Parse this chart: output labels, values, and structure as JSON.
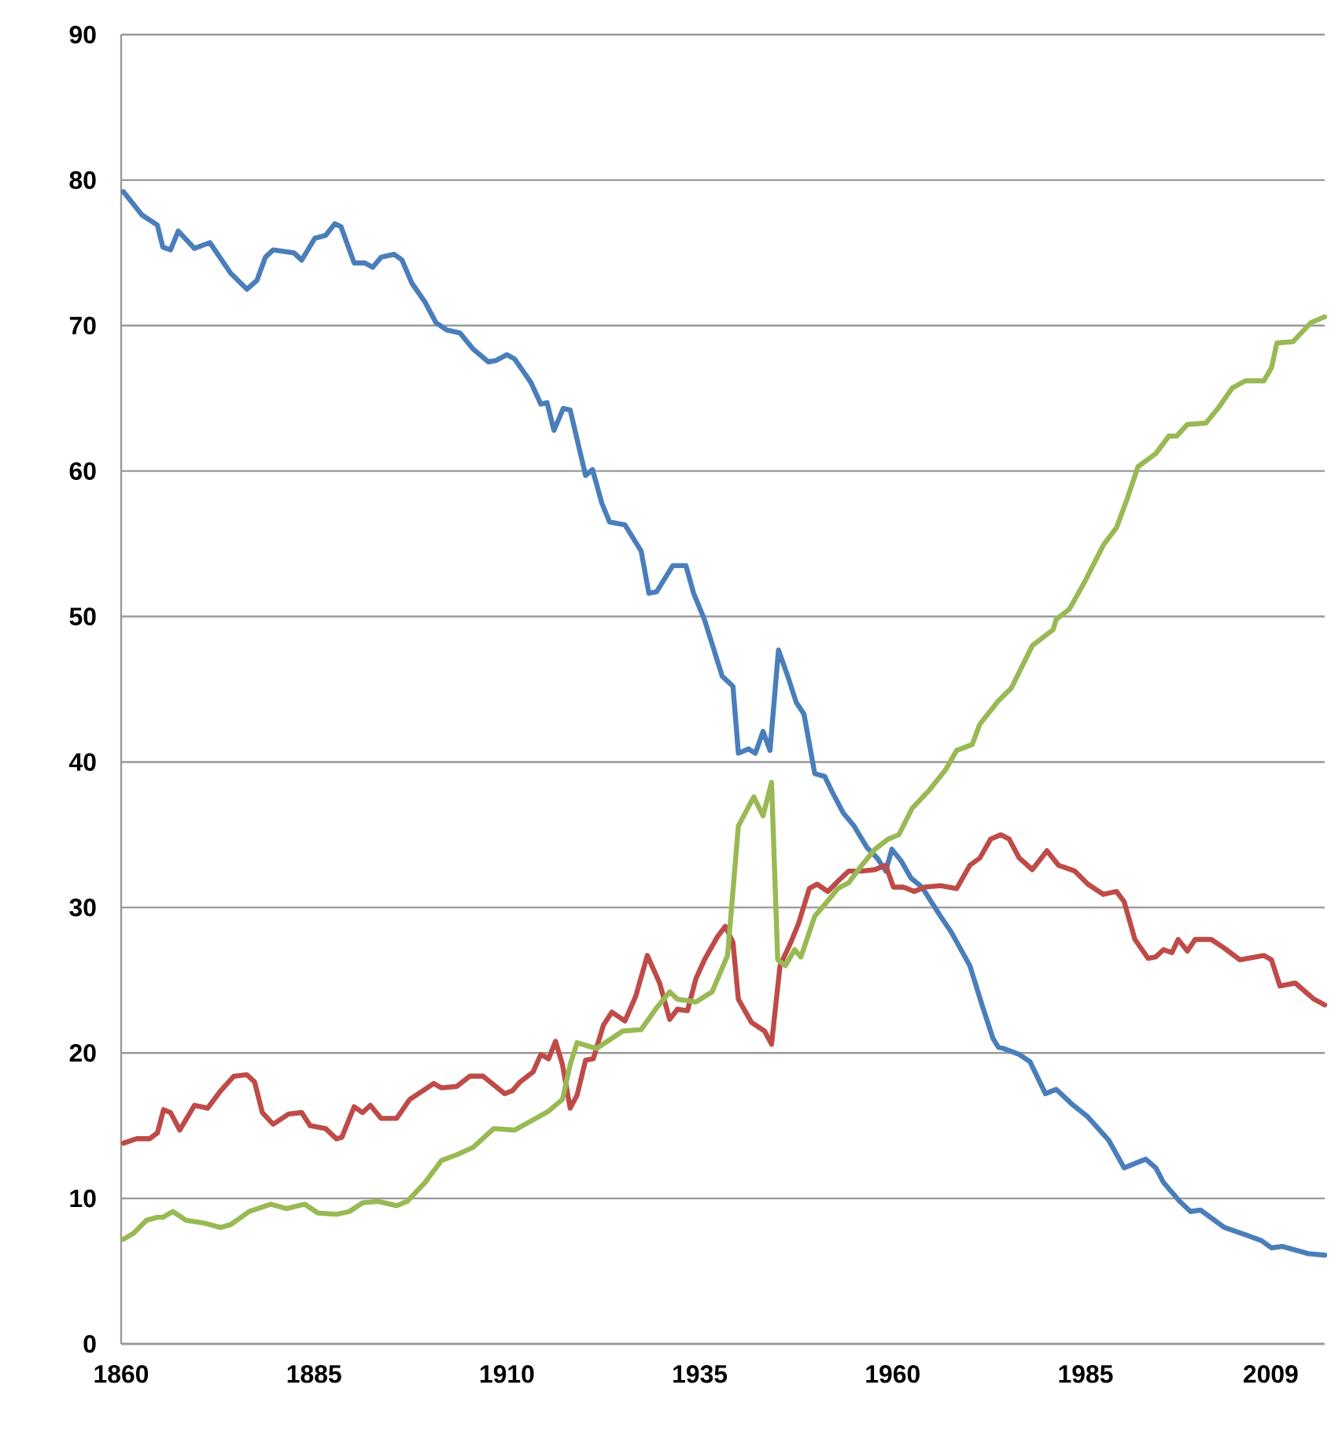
{
  "chart_data": {
    "type": "line",
    "xlim": [
      1860,
      2016
    ],
    "xticks": [
      1860,
      1885,
      1910,
      1935,
      1960,
      1985,
      2009
    ],
    "ylim": [
      0,
      90
    ],
    "yticks": [
      0,
      10,
      20,
      30,
      40,
      50,
      60,
      70,
      80,
      90
    ],
    "grid": "y",
    "line_style": "solid",
    "marker": "none",
    "series": [
      {
        "color": "#4a7ebb",
        "x": [
          1860.3,
          1862.7,
          1864.7,
          1865.4,
          1866.4,
          1867.4,
          1869.5,
          1871.5,
          1874.2,
          1876.3,
          1877.6,
          1878.7,
          1879.7,
          1882.4,
          1883.4,
          1885.1,
          1886.5,
          1887.7,
          1888.5,
          1890.2,
          1891.6,
          1892.6,
          1893.7,
          1895.4,
          1896.4,
          1897.7,
          1899.4,
          1900.8,
          1902.2,
          1903.9,
          1905.6,
          1907.6,
          1908.6,
          1910.0,
          1911.0,
          1913.1,
          1914.4,
          1915.2,
          1916.1,
          1917.3,
          1918.2,
          1920.2,
          1921.1,
          1922.3,
          1923.3,
          1925.3,
          1927.4,
          1928.4,
          1929.4,
          1931.5,
          1933.2,
          1934.2,
          1935.6,
          1937.9,
          1939.3,
          1940.0,
          1941.3,
          1942.2,
          1943.2,
          1944.1,
          1945.2,
          1946.4,
          1947.5,
          1948.5,
          1949.9,
          1951.2,
          1952.2,
          1953.6,
          1955.0,
          1956.7,
          1958.0,
          1959.1,
          1959.9,
          1961.1,
          1962.4,
          1963.8,
          1966.2,
          1967.6,
          1970.0,
          1971.7,
          1973.0,
          1973.7,
          1974.4,
          1976.4,
          1977.8,
          1979.8,
          1981.2,
          1983.2,
          1985.3,
          1988.0,
          1990.0,
          1992.8,
          1994.1,
          1995.1,
          1997.2,
          1998.6,
          1999.9,
          2003.0,
          2005.7,
          2007.8,
          2009.1,
          2010.5,
          2013.9,
          2016.0
        ],
        "values": [
          79.2,
          77.6,
          76.9,
          75.4,
          75.2,
          76.5,
          75.3,
          75.7,
          73.6,
          72.5,
          73.1,
          74.7,
          75.2,
          75.0,
          74.5,
          76.0,
          76.2,
          77.0,
          76.8,
          74.3,
          74.3,
          74.0,
          74.7,
          74.9,
          74.5,
          72.9,
          71.6,
          70.2,
          69.7,
          69.5,
          68.4,
          67.5,
          67.6,
          68.0,
          67.7,
          66.1,
          64.6,
          64.7,
          62.8,
          64.3,
          64.2,
          59.7,
          60.1,
          57.8,
          56.5,
          56.3,
          54.5,
          51.6,
          51.7,
          53.5,
          53.5,
          51.6,
          49.8,
          45.9,
          45.2,
          40.6,
          40.9,
          40.6,
          42.1,
          40.8,
          47.7,
          45.9,
          44.1,
          43.3,
          39.2,
          39.0,
          37.9,
          36.5,
          35.6,
          34.1,
          33.4,
          32.5,
          34.0,
          33.2,
          32.0,
          31.4,
          29.4,
          28.3,
          26.0,
          23.1,
          21.0,
          20.4,
          20.3,
          19.9,
          19.4,
          17.2,
          17.5,
          16.5,
          15.6,
          14.0,
          12.1,
          12.7,
          12.1,
          11.1,
          9.8,
          9.1,
          9.2,
          8.0,
          7.5,
          7.1,
          6.6,
          6.7,
          6.2,
          6.1
        ]
      },
      {
        "color": "#be4b48",
        "x": [
          1860.3,
          1862.0,
          1863.7,
          1864.7,
          1865.5,
          1866.4,
          1867.6,
          1869.5,
          1871.2,
          1872.9,
          1874.6,
          1876.3,
          1877.3,
          1878.3,
          1879.7,
          1881.7,
          1883.4,
          1884.5,
          1886.5,
          1887.9,
          1888.6,
          1890.2,
          1891.3,
          1892.3,
          1893.7,
          1895.7,
          1897.4,
          1899.4,
          1900.5,
          1901.5,
          1903.5,
          1905.2,
          1906.9,
          1909.7,
          1910.7,
          1911.7,
          1913.4,
          1914.4,
          1915.4,
          1916.3,
          1917.2,
          1918.2,
          1919.1,
          1920.2,
          1921.2,
          1922.5,
          1923.6,
          1925.3,
          1926.7,
          1928.2,
          1929.8,
          1931.1,
          1932.1,
          1933.4,
          1934.5,
          1935.6,
          1937.3,
          1938.3,
          1939.3,
          1940.0,
          1941.7,
          1943.4,
          1944.3,
          1945.4,
          1946.8,
          1947.8,
          1949.2,
          1950.2,
          1951.6,
          1952.9,
          1954.3,
          1956.0,
          1957.7,
          1959.1,
          1960.1,
          1961.4,
          1962.8,
          1964.2,
          1966.2,
          1968.3,
          1970.0,
          1971.3,
          1972.7,
          1974.0,
          1975.1,
          1976.4,
          1978.1,
          1980.0,
          1981.5,
          1983.6,
          1985.3,
          1987.3,
          1989.0,
          1990.0,
          1991.4,
          1993.1,
          1994.1,
          1995.1,
          1996.2,
          1997.0,
          1998.2,
          1999.2,
          2001.3,
          2003.0,
          2005.0,
          2008.1,
          2009.1,
          2010.2,
          2012.2,
          2014.6,
          2016.0
        ],
        "values": [
          13.8,
          14.1,
          14.1,
          14.5,
          16.1,
          15.9,
          14.7,
          16.4,
          16.2,
          17.4,
          18.4,
          18.5,
          18.0,
          15.9,
          15.1,
          15.8,
          15.9,
          15.0,
          14.8,
          14.1,
          14.2,
          16.3,
          15.9,
          16.4,
          15.5,
          15.5,
          16.8,
          17.5,
          17.9,
          17.6,
          17.7,
          18.4,
          18.4,
          17.2,
          17.4,
          18.0,
          18.7,
          19.9,
          19.6,
          20.8,
          19.2,
          16.2,
          17.1,
          19.5,
          19.6,
          21.9,
          22.8,
          22.2,
          23.9,
          26.7,
          24.8,
          22.3,
          23.0,
          22.9,
          25.1,
          26.4,
          28.0,
          28.7,
          27.6,
          23.7,
          22.1,
          21.5,
          20.6,
          26.0,
          27.6,
          28.9,
          31.3,
          31.6,
          31.1,
          31.8,
          32.5,
          32.5,
          32.6,
          32.9,
          31.4,
          31.4,
          31.1,
          31.4,
          31.5,
          31.3,
          32.9,
          33.4,
          34.7,
          35.0,
          34.7,
          33.4,
          32.6,
          33.9,
          32.9,
          32.5,
          31.6,
          30.9,
          31.1,
          30.4,
          27.8,
          26.5,
          26.6,
          27.1,
          26.9,
          27.8,
          27.0,
          27.8,
          27.8,
          27.2,
          26.4,
          26.7,
          26.4,
          24.6,
          24.8,
          23.7,
          23.3
        ]
      },
      {
        "color": "#98b954",
        "x": [
          1860.3,
          1861.6,
          1863.3,
          1864.7,
          1865.4,
          1866.7,
          1868.4,
          1870.8,
          1872.9,
          1874.2,
          1876.6,
          1879.4,
          1881.4,
          1883.8,
          1885.5,
          1887.9,
          1889.6,
          1891.3,
          1893.3,
          1895.7,
          1897.1,
          1899.4,
          1901.5,
          1903.5,
          1905.6,
          1908.3,
          1911.0,
          1913.4,
          1915.4,
          1917.2,
          1918.2,
          1919.1,
          1921.6,
          1923.6,
          1925.0,
          1927.4,
          1929.4,
          1931.1,
          1932.1,
          1934.5,
          1936.6,
          1938.6,
          1940.0,
          1942.0,
          1943.2,
          1944.3,
          1945.1,
          1946.1,
          1947.3,
          1948.1,
          1949.9,
          1951.2,
          1952.9,
          1954.3,
          1956.0,
          1957.7,
          1959.4,
          1960.8,
          1962.5,
          1964.8,
          1966.9,
          1968.3,
          1970.3,
          1971.3,
          1973.7,
          1975.4,
          1978.1,
          1980.8,
          1981.2,
          1982.9,
          1984.9,
          1987.3,
          1989.0,
          1990.4,
          1991.8,
          1994.1,
          1995.8,
          1996.8,
          1998.2,
          2000.6,
          2002.3,
          2004.0,
          2005.7,
          2008.1,
          2009.1,
          2009.8,
          2011.9,
          2014.2,
          2016.0
        ],
        "values": [
          7.2,
          7.6,
          8.5,
          8.7,
          8.7,
          9.1,
          8.5,
          8.3,
          8.0,
          8.2,
          9.1,
          9.6,
          9.3,
          9.6,
          9.0,
          8.9,
          9.1,
          9.7,
          9.8,
          9.5,
          9.8,
          11.1,
          12.6,
          13.0,
          13.5,
          14.8,
          14.7,
          15.4,
          16.0,
          16.8,
          19.2,
          20.7,
          20.3,
          21.0,
          21.5,
          21.6,
          23.1,
          24.2,
          23.7,
          23.5,
          24.2,
          26.7,
          35.6,
          37.6,
          36.3,
          38.6,
          26.4,
          26.0,
          27.1,
          26.6,
          29.4,
          30.2,
          31.3,
          31.7,
          32.9,
          34.0,
          34.7,
          35.0,
          36.8,
          38.1,
          39.5,
          40.8,
          41.2,
          42.6,
          44.2,
          45.1,
          48.0,
          49.1,
          49.8,
          50.5,
          52.4,
          54.9,
          56.1,
          58.1,
          60.3,
          61.2,
          62.4,
          62.4,
          63.2,
          63.3,
          64.4,
          65.7,
          66.2,
          66.2,
          67.1,
          68.8,
          68.9,
          70.2,
          70.6
        ]
      }
    ]
  }
}
